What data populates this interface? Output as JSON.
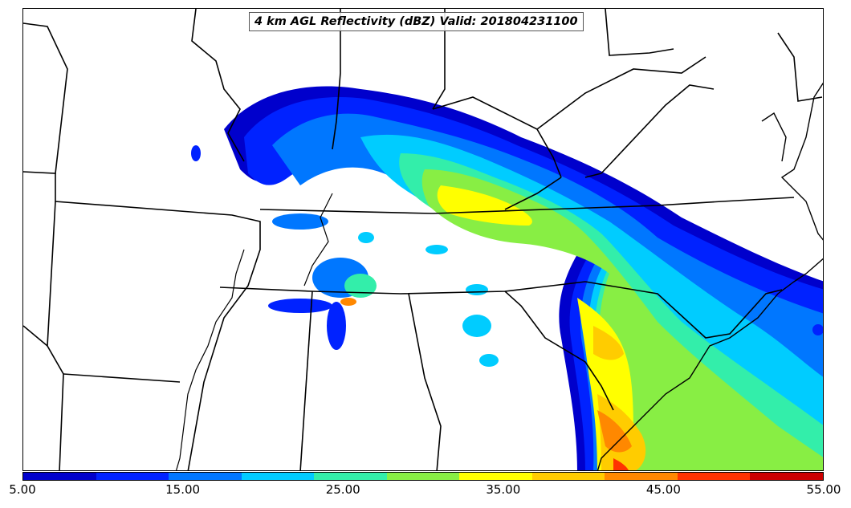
{
  "title": "4 km AGL Reflectivity (dBZ) Valid: 201804231100",
  "colorbar": {
    "colors": [
      "#0000cc",
      "#0022ff",
      "#0077ff",
      "#00ccff",
      "#33eeaa",
      "#88ee44",
      "#ffff00",
      "#ffcc00",
      "#ff8800",
      "#ff3300",
      "#cc0000"
    ],
    "tick_labels": [
      "5.00",
      "15.00",
      "25.00",
      "35.00",
      "45.00",
      "55.00"
    ],
    "min": 5,
    "max": 55
  }
}
